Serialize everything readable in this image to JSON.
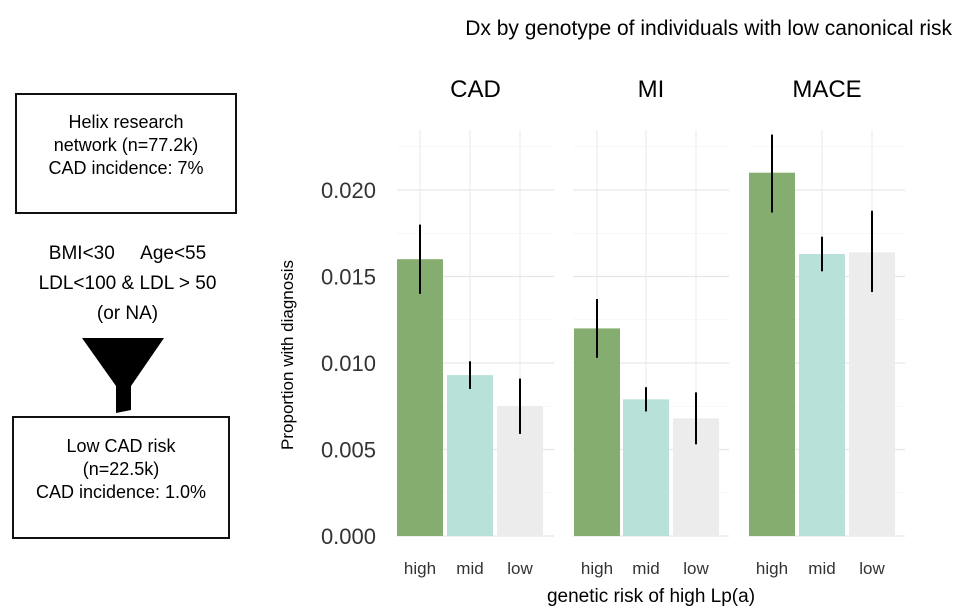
{
  "flow": {
    "top_box": [
      "Helix research",
      "network (n=77.2k)",
      "CAD incidence: 7%"
    ],
    "criteria": [
      "BMI<30     Age<55",
      "LDL<100 & LDL > 50",
      "(or NA)"
    ],
    "bottom_box": [
      "Low CAD risk",
      "(n=22.5k)",
      "CAD incidence: 1.0%"
    ]
  },
  "chart_data": {
    "type": "bar",
    "title": "Dx by genotype of individuals with low canonical risk",
    "xlabel": "genetic risk of high Lp(a)",
    "ylabel": "Proportion with diagnosis",
    "ylim": [
      0,
      0.023
    ],
    "yticks": [
      "0.000",
      "0.005",
      "0.010",
      "0.015",
      "0.020"
    ],
    "categories": [
      "high",
      "mid",
      "low"
    ],
    "colors": [
      "#85ad6f",
      "#b8e2d9",
      "#ececec"
    ],
    "grid": true,
    "panels": [
      {
        "name": "CAD",
        "values": [
          0.016,
          0.0093,
          0.0075
        ],
        "err_low": [
          0.014,
          0.0085,
          0.0059
        ],
        "err_high": [
          0.018,
          0.0101,
          0.0091
        ]
      },
      {
        "name": "MI",
        "values": [
          0.012,
          0.0079,
          0.0068
        ],
        "err_low": [
          0.0103,
          0.0072,
          0.0053
        ],
        "err_high": [
          0.0137,
          0.0086,
          0.0083
        ]
      },
      {
        "name": "MACE",
        "values": [
          0.021,
          0.0163,
          0.0164
        ],
        "err_low": [
          0.0187,
          0.0153,
          0.0141
        ],
        "err_high": [
          0.0232,
          0.0173,
          0.0188
        ]
      }
    ]
  }
}
